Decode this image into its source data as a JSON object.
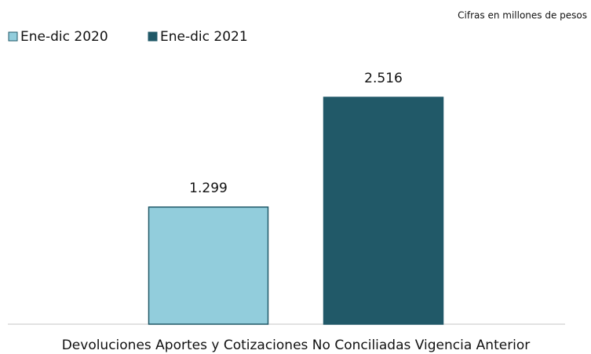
{
  "chart_data": {
    "type": "bar",
    "subtitle": "Cifras en millones de pesos",
    "categories": [
      "Devoluciones Aportes y Cotizaciones No Conciliadas Vigencia Anterior"
    ],
    "series": [
      {
        "name": "Ene-dic 2020",
        "color": "#92cddc",
        "values": [
          1299
        ],
        "value_labels": [
          "1.299"
        ]
      },
      {
        "name": "Ene-dic 2021",
        "color": "#215968",
        "values": [
          2516
        ],
        "value_labels": [
          "2.516"
        ]
      }
    ],
    "legend": "top-left"
  }
}
